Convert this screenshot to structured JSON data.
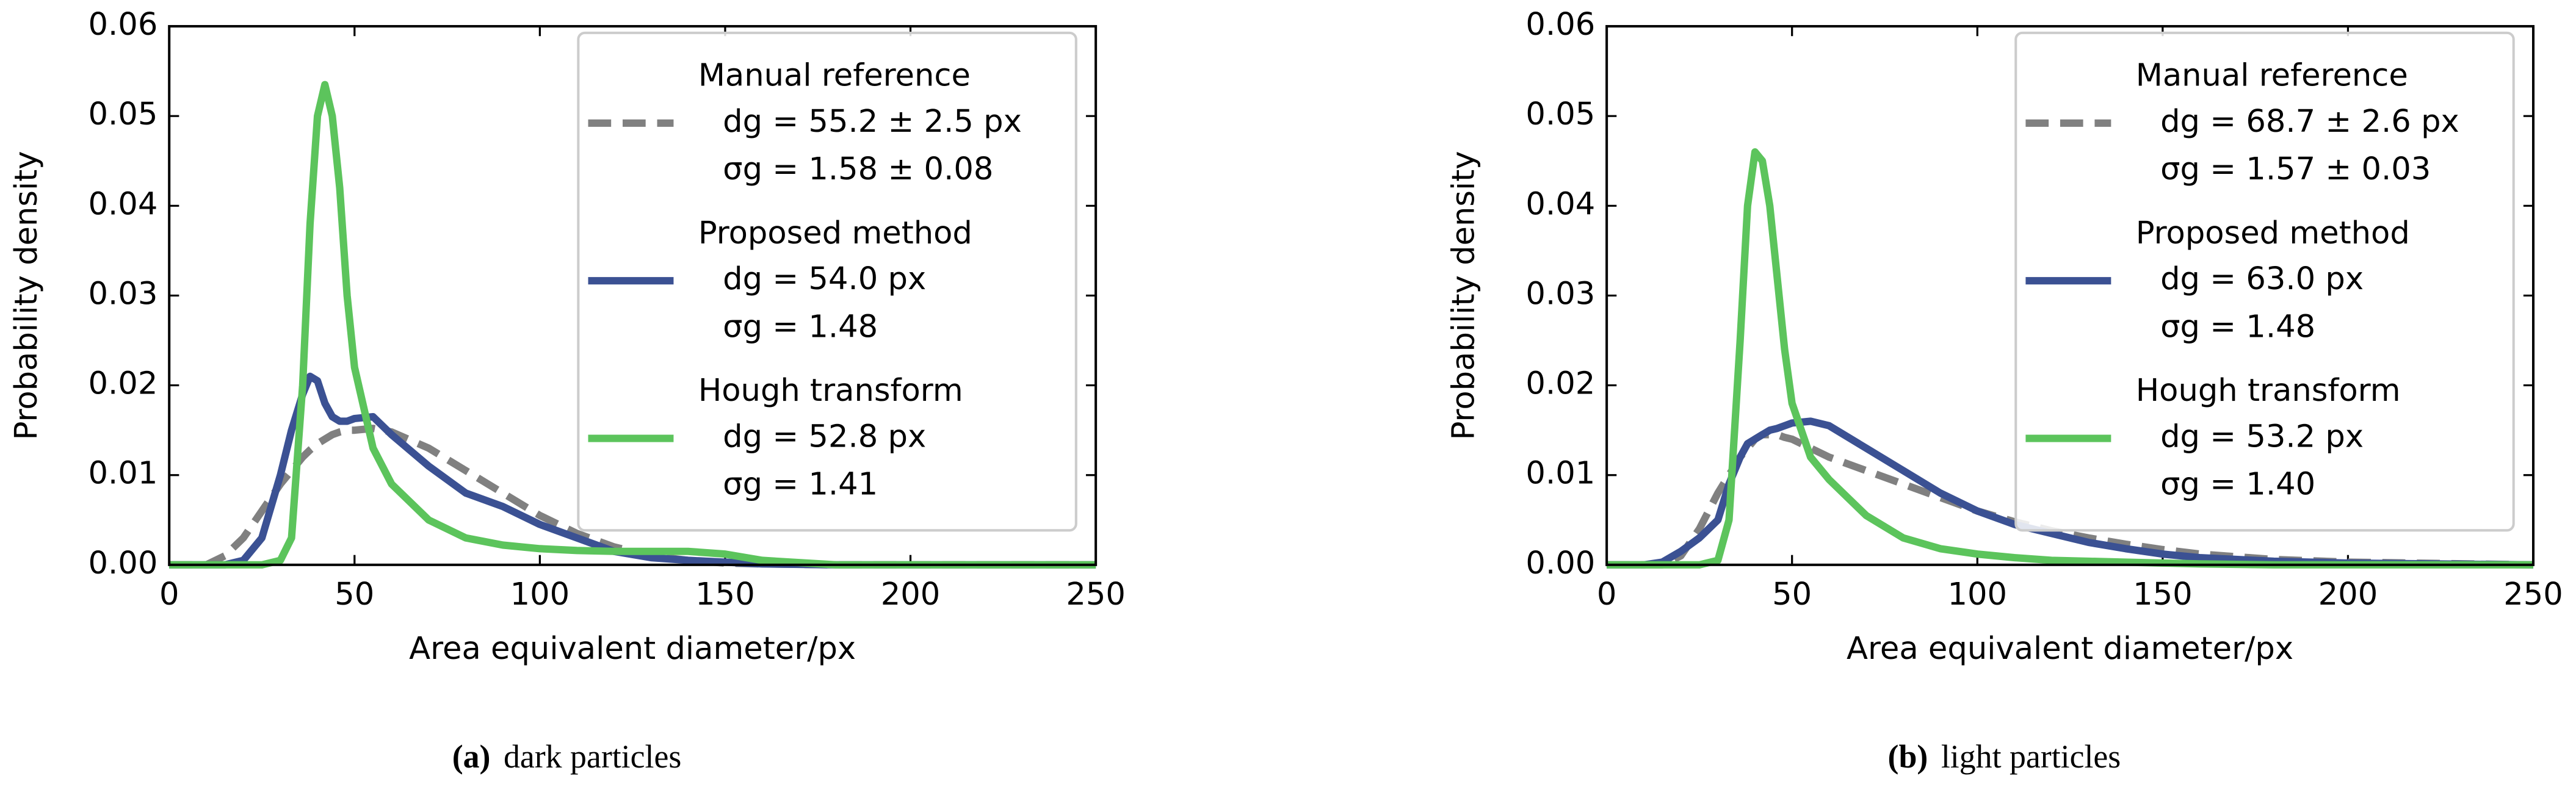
{
  "chart_data": [
    {
      "type": "line",
      "caption_label": "(a)",
      "caption": "dark particles",
      "x_label": "Area equivalent diameter/px",
      "y_label": "Probability density",
      "x": [
        0,
        10,
        15,
        20,
        25,
        30,
        33,
        36,
        38,
        40,
        42,
        44,
        46,
        48,
        50,
        55,
        60,
        70,
        80,
        90,
        100,
        110,
        120,
        130,
        140,
        150,
        160,
        180,
        200,
        250
      ],
      "series": [
        {
          "name": "Manual reference",
          "stats": [
            "dg = 55.2 ± 2.5 px",
            "σg = 1.58 ± 0.08"
          ],
          "color": "#808080",
          "dashed": true,
          "values": [
            0,
            0,
            0.001,
            0.003,
            0.006,
            0.009,
            0.0105,
            0.012,
            0.0128,
            0.0135,
            0.014,
            0.0145,
            0.0148,
            0.015,
            0.015,
            0.0152,
            0.0148,
            0.013,
            0.0105,
            0.008,
            0.0055,
            0.0035,
            0.002,
            0.001,
            0.0005,
            0.0002,
            0.0001,
            0,
            0,
            0
          ]
        },
        {
          "name": "Proposed method",
          "stats": [
            "dg = 54.0 px",
            "σg = 1.48"
          ],
          "color": "#3b5193",
          "dashed": false,
          "values": [
            0,
            0,
            0,
            0.0005,
            0.003,
            0.01,
            0.015,
            0.019,
            0.021,
            0.0205,
            0.018,
            0.0165,
            0.016,
            0.016,
            0.0163,
            0.0165,
            0.0145,
            0.011,
            0.008,
            0.0065,
            0.0045,
            0.003,
            0.0015,
            0.0008,
            0.0005,
            0.0003,
            0.0001,
            0,
            0,
            0
          ]
        },
        {
          "name": "Hough transform",
          "stats": [
            "dg = 52.8 px",
            "σg = 1.41"
          ],
          "color": "#5cc45c",
          "dashed": false,
          "values": [
            0,
            0,
            0,
            0,
            0,
            0.0005,
            0.003,
            0.02,
            0.038,
            0.05,
            0.0535,
            0.05,
            0.042,
            0.03,
            0.022,
            0.013,
            0.009,
            0.005,
            0.003,
            0.0022,
            0.0018,
            0.0016,
            0.0015,
            0.0015,
            0.0015,
            0.0012,
            0.0005,
            0,
            0,
            0
          ]
        }
      ],
      "xlim": [
        0,
        250
      ],
      "xticks": [
        0,
        50,
        100,
        150,
        200,
        250
      ],
      "ylim": [
        0,
        0.06
      ],
      "yticks": [
        {
          "value": 0,
          "label": "0.00"
        },
        {
          "value": 0.01,
          "label": "0.01"
        },
        {
          "value": 0.02,
          "label": "0.02"
        },
        {
          "value": 0.03,
          "label": "0.03"
        },
        {
          "value": 0.04,
          "label": "0.04"
        },
        {
          "value": 0.05,
          "label": "0.05"
        },
        {
          "value": 0.06,
          "label": "0.06"
        }
      ],
      "legend": "upper right"
    },
    {
      "type": "line",
      "caption_label": "(b)",
      "caption": "light particles",
      "x_label": "Area equivalent diameter/px",
      "y_label": "Probability density",
      "x": [
        0,
        10,
        15,
        20,
        25,
        30,
        33,
        36,
        38,
        40,
        42,
        44,
        46,
        48,
        50,
        55,
        60,
        70,
        80,
        90,
        100,
        110,
        120,
        130,
        140,
        150,
        160,
        180,
        200,
        250
      ],
      "series": [
        {
          "name": "Manual reference",
          "stats": [
            "dg = 68.7 ± 2.6 px",
            "σg = 1.57 ± 0.03"
          ],
          "color": "#808080",
          "dashed": true,
          "values": [
            0,
            0,
            0,
            0.001,
            0.004,
            0.008,
            0.01,
            0.012,
            0.013,
            0.014,
            0.0145,
            0.0145,
            0.0145,
            0.0142,
            0.014,
            0.013,
            0.012,
            0.0105,
            0.009,
            0.0075,
            0.006,
            0.0048,
            0.0038,
            0.003,
            0.0023,
            0.0017,
            0.0012,
            0.0006,
            0.0003,
            0
          ]
        },
        {
          "name": "Proposed method",
          "stats": [
            "dg = 63.0 px",
            "σg = 1.48"
          ],
          "color": "#3b5193",
          "dashed": false,
          "values": [
            0,
            0,
            0.0003,
            0.0015,
            0.003,
            0.005,
            0.009,
            0.012,
            0.0135,
            0.014,
            0.0145,
            0.015,
            0.0152,
            0.0155,
            0.0158,
            0.016,
            0.0155,
            0.013,
            0.0105,
            0.008,
            0.006,
            0.0045,
            0.0035,
            0.0025,
            0.0018,
            0.0012,
            0.0008,
            0.0004,
            0.0002,
            0
          ]
        },
        {
          "name": "Hough transform",
          "stats": [
            "dg = 53.2 px",
            "σg = 1.40"
          ],
          "color": "#5cc45c",
          "dashed": false,
          "values": [
            0,
            0,
            0,
            0,
            0,
            0.0005,
            0.005,
            0.025,
            0.04,
            0.046,
            0.045,
            0.04,
            0.032,
            0.024,
            0.018,
            0.012,
            0.0095,
            0.0055,
            0.003,
            0.0018,
            0.0012,
            0.0008,
            0.0005,
            0.0004,
            0.0003,
            0.0002,
            0.0001,
            0,
            0,
            0
          ]
        }
      ],
      "xlim": [
        0,
        250
      ],
      "xticks": [
        0,
        50,
        100,
        150,
        200,
        250
      ],
      "ylim": [
        0,
        0.06
      ],
      "yticks": [
        {
          "value": 0,
          "label": "0.00"
        },
        {
          "value": 0.01,
          "label": "0.01"
        },
        {
          "value": 0.02,
          "label": "0.02"
        },
        {
          "value": 0.03,
          "label": "0.03"
        },
        {
          "value": 0.04,
          "label": "0.04"
        },
        {
          "value": 0.05,
          "label": "0.05"
        },
        {
          "value": 0.06,
          "label": "0.06"
        }
      ],
      "legend": "upper right"
    }
  ]
}
